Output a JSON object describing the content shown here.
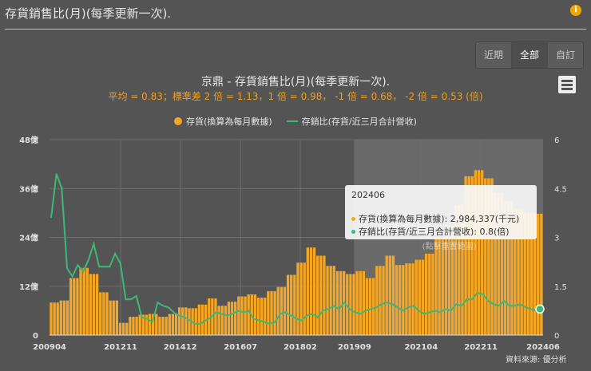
{
  "header": {
    "title": "存貨銷售比(月)(每季更新一次).",
    "info_icon": "info-icon"
  },
  "range_buttons": [
    {
      "label": "近期",
      "active": false
    },
    {
      "label": "全部",
      "active": true
    },
    {
      "label": "自訂",
      "active": false
    }
  ],
  "menu_icon": "hamburger-menu-icon",
  "source": "資料來源: 優分析",
  "reset_zoom_label": "(點擊重置範圍)",
  "tooltip": {
    "title": "202406",
    "rows": [
      {
        "text": "存貨(換算為每月數據): 2,984,337(千元)",
        "color": "#f5a623"
      },
      {
        "text": "存銷比(存貨/近三月合計營收): 0.8(倍)",
        "color": "#3cb878"
      }
    ]
  },
  "colors": {
    "background": "#545454",
    "bars": "#f5a623",
    "line": "#3cb878",
    "subtitle": "#f0a020",
    "highlight": "#6a6a6a"
  },
  "chart_data": {
    "type": "bar+line",
    "title": "京鼎 - 存貨銷售比(月)(每季更新一次).",
    "subtitle": "平均 = 0.83；標準差 2 倍 = 1.13，1 倍 = 0.98， -1 倍 = 0.68， -2 倍 = 0.53 (倍)",
    "x_ticks": [
      "200904",
      "201211",
      "201412",
      "201607",
      "201802",
      "201909",
      "202104",
      "202211",
      "202406"
    ],
    "highlight_range": [
      "201909",
      "202406"
    ],
    "y_left": {
      "ticks": [
        "0",
        "12億",
        "24億",
        "36億",
        "48億"
      ],
      "range": [
        0,
        48
      ],
      "unit": "億"
    },
    "y_right": {
      "ticks": [
        "0",
        "1.5",
        "3",
        "4.5",
        "6"
      ],
      "range": [
        0,
        6
      ]
    },
    "grid": true,
    "legend_position": "top",
    "series": [
      {
        "name": "存貨(換算為每月數據)",
        "type": "bar",
        "axis": "left",
        "frequency": "quarterly",
        "values": [
          8,
          8.5,
          14,
          16.5,
          15,
          10.5,
          8.5,
          3,
          4.5,
          5,
          5.2,
          4.5,
          5.2,
          6.8,
          6.6,
          7.5,
          9,
          7.2,
          8.2,
          9.5,
          10,
          9.2,
          10.8,
          11.8,
          14.8,
          17.8,
          21.5,
          19.5,
          17,
          15.7,
          15,
          15.7,
          14,
          17,
          19.5,
          17.2,
          17.6,
          18.5,
          20,
          24,
          27,
          32,
          39,
          40.5,
          38.5,
          35,
          33,
          31,
          30,
          29.8
        ]
      },
      {
        "name": "存銷比(存貨/近三月合計營收)",
        "type": "line",
        "axis": "right",
        "values": [
          3.6,
          4.95,
          4.5,
          2.05,
          1.8,
          2.15,
          1.95,
          2.3,
          2.8,
          2.1,
          2.1,
          2.1,
          2.5,
          2.2,
          1.1,
          1.1,
          1.2,
          0.55,
          0.5,
          0.4,
          1.0,
          0.9,
          0.85,
          0.7,
          0.6,
          0.55,
          0.45,
          0.35,
          0.35,
          0.45,
          0.55,
          0.7,
          0.65,
          0.6,
          0.65,
          0.75,
          0.7,
          0.75,
          0.5,
          0.45,
          0.4,
          0.35,
          0.4,
          0.65,
          0.7,
          0.6,
          0.5,
          0.45,
          0.6,
          0.65,
          0.55,
          0.75,
          0.8,
          0.9,
          0.8,
          1.0,
          0.8,
          0.7,
          0.65,
          0.75,
          0.8,
          0.85,
          0.95,
          1.0,
          0.95,
          0.85,
          0.75,
          0.85,
          0.9,
          0.75,
          0.65,
          0.7,
          0.75,
          0.7,
          0.8,
          0.75,
          0.95,
          0.9,
          1.1,
          1.1,
          1.3,
          1.25,
          1.05,
          0.95,
          0.9,
          1.05,
          0.9,
          0.9,
          0.95,
          0.85,
          0.8,
          0.75,
          0.8
        ]
      }
    ]
  }
}
